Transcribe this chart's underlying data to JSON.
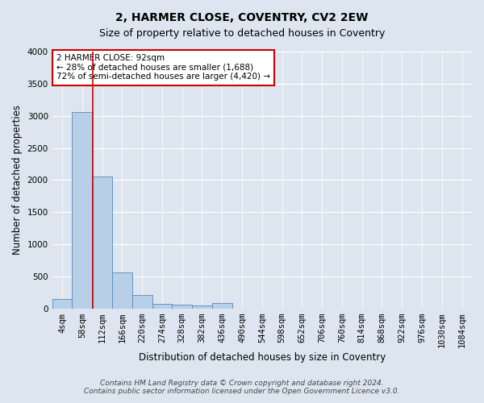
{
  "title": "2, HARMER CLOSE, COVENTRY, CV2 2EW",
  "subtitle": "Size of property relative to detached houses in Coventry",
  "xlabel": "Distribution of detached houses by size in Coventry",
  "ylabel": "Number of detached properties",
  "bin_labels": [
    "4sqm",
    "58sqm",
    "112sqm",
    "166sqm",
    "220sqm",
    "274sqm",
    "328sqm",
    "382sqm",
    "436sqm",
    "490sqm",
    "544sqm",
    "598sqm",
    "652sqm",
    "706sqm",
    "760sqm",
    "814sqm",
    "868sqm",
    "922sqm",
    "976sqm",
    "1030sqm",
    "1084sqm"
  ],
  "bar_heights": [
    150,
    3060,
    2060,
    560,
    215,
    75,
    55,
    50,
    80,
    0,
    0,
    0,
    0,
    0,
    0,
    0,
    0,
    0,
    0,
    0,
    0
  ],
  "bar_color": "#b8cfe8",
  "bar_edge_color": "#5588bb",
  "vline_color": "#cc0000",
  "annotation_text": "2 HARMER CLOSE: 92sqm\n← 28% of detached houses are smaller (1,688)\n72% of semi-detached houses are larger (4,420) →",
  "annotation_box_color": "#ffffff",
  "annotation_box_edge_color": "#cc0000",
  "ylim": [
    0,
    4000
  ],
  "yticks": [
    0,
    500,
    1000,
    1500,
    2000,
    2500,
    3000,
    3500,
    4000
  ],
  "bg_color": "#dde6f0",
  "footnote": "Contains HM Land Registry data © Crown copyright and database right 2024.\nContains public sector information licensed under the Open Government Licence v3.0.",
  "title_fontsize": 10,
  "subtitle_fontsize": 9,
  "xlabel_fontsize": 8.5,
  "ylabel_fontsize": 8.5,
  "tick_fontsize": 7.5,
  "annotation_fontsize": 7.5,
  "footnote_fontsize": 6.5
}
